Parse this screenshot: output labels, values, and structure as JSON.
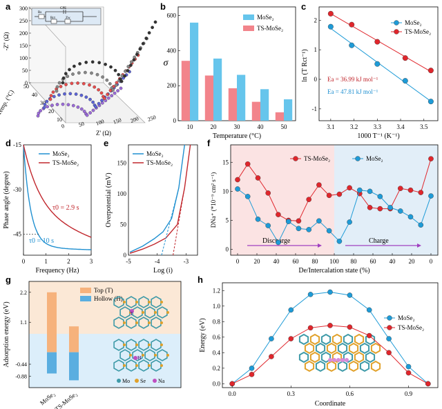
{
  "labels": {
    "a": "a",
    "b": "b",
    "c": "c",
    "d": "d",
    "e": "e",
    "f": "f",
    "g": "g",
    "h": "h"
  },
  "chart_data": [
    {
      "panel": "a",
      "type": "scatter",
      "xlabel": "Z' (Ω)",
      "ylabel": "-Z'' (Ω)",
      "zlabel": "Temp. (°C)",
      "yticks": [
        "0",
        "50",
        "100",
        "150",
        "200",
        "250",
        "300"
      ],
      "xticks": [
        "0",
        "50",
        "100",
        "150",
        "200",
        "250"
      ],
      "zticks": [
        "50",
        "40",
        "30",
        "20",
        "10"
      ],
      "circuit": {
        "rs": "Rs",
        "cpe": "CPE",
        "rct": "Rct",
        "zw": "Zw"
      },
      "series": [
        {
          "temp": "50",
          "color": "#9b6bd9"
        },
        {
          "temp": "40",
          "color": "#5b63d6"
        },
        {
          "temp": "30",
          "color": "#e84d4d"
        },
        {
          "temp": "20",
          "color": "#888888"
        },
        {
          "temp": "10",
          "color": "#333333"
        }
      ]
    },
    {
      "panel": "b",
      "type": "bar",
      "xlabel": "Temperature (°C)",
      "ylabel": "σ",
      "categories": [
        "10",
        "20",
        "30",
        "40",
        "50"
      ],
      "ylim": [
        0,
        650
      ],
      "yticks": [
        0,
        200,
        400,
        600
      ],
      "series": [
        {
          "name": "MoSe₂",
          "values": [
            560,
            355,
            262,
            180,
            122
          ],
          "color": "#66c5ec"
        },
        {
          "name": "TS-MoSe₂",
          "values": [
            342,
            258,
            185,
            108,
            48
          ],
          "color": "#f2848b"
        }
      ]
    },
    {
      "panel": "c",
      "type": "scatter",
      "xlabel": "1000 T⁻¹ (K⁻¹)",
      "ylabel": "ln (T Rct⁻¹)",
      "xlim": [
        3.05,
        3.56
      ],
      "ylim": [
        -1.4,
        2.45
      ],
      "xticks": [
        "3.1",
        "3.2",
        "3.3",
        "3.4",
        "3.5"
      ],
      "yticks": [
        "2",
        "1",
        "0",
        "-1"
      ],
      "series": [
        {
          "name": "MoSe₂",
          "x": [
            3.1,
            3.19,
            3.3,
            3.42,
            3.53
          ],
          "y": [
            1.78,
            1.15,
            0.52,
            -0.05,
            -0.75
          ],
          "color": "#1e9bd7"
        },
        {
          "name": "TS-MoSe₂",
          "x": [
            3.1,
            3.19,
            3.3,
            3.42,
            3.53
          ],
          "y": [
            2.22,
            1.85,
            1.27,
            0.72,
            0.3
          ],
          "color": "#e0262c"
        }
      ],
      "annotations": [
        "Ea = 36.99 kJ mol⁻¹",
        "Ea = 47.81 kJ mol⁻¹"
      ]
    },
    {
      "panel": "d",
      "type": "line",
      "xlabel": "Frequency (Hz)",
      "ylabel": "Phase angle (degree)",
      "xlim": [
        0,
        3
      ],
      "ylim": [
        -52,
        -15
      ],
      "xticks": [
        "0",
        "1",
        "2",
        "3"
      ],
      "yticks": [
        "-45",
        "-30",
        "-15"
      ],
      "series": [
        {
          "name": "MoSe₂",
          "color": "#1e8fd0"
        },
        {
          "name": "TS-MoSe₂",
          "color": "#c0252b"
        }
      ],
      "annotations": [
        "τ0 = 2.9 s",
        "τ0 = 10 s"
      ]
    },
    {
      "panel": "e",
      "type": "line",
      "xlabel": "Log (i)",
      "ylabel": "Overpotential (mV)",
      "xlim": [
        -5,
        -2.6
      ],
      "ylim": [
        0,
        180
      ],
      "xticks": [
        "-5",
        "-4",
        "-3"
      ],
      "yticks": [
        "0",
        "50",
        "100",
        "150"
      ],
      "series": [
        {
          "name": "MoSe₂",
          "color": "#1e8fd0"
        },
        {
          "name": "TS-MoSe₂",
          "color": "#c0252b"
        }
      ]
    },
    {
      "panel": "f",
      "type": "line",
      "xlabel": "De/Intercalation state (%)",
      "ylabel": "DNa⁺ (*10⁻⁹ cm² s⁻¹)",
      "ylim": [
        -1,
        18
      ],
      "xticks": [
        "0",
        "20",
        "40",
        "60",
        "80",
        "100",
        "80",
        "60",
        "40",
        "20",
        "0"
      ],
      "yticks": [
        "0",
        "5",
        "10",
        "15"
      ],
      "regions": [
        "Discharge",
        "Charge"
      ],
      "series": [
        {
          "name": "TS-MoSe₂",
          "values": [
            12,
            14.7,
            12.3,
            9.7,
            6,
            5,
            4.9,
            8.6,
            11.1,
            9.3,
            9.5,
            10.6,
            9.6,
            7.2,
            7,
            7,
            10.5,
            10.2,
            9.8,
            15.6
          ],
          "color": "#e0262c"
        },
        {
          "name": "MoSe₂",
          "values": [
            10.4,
            9.1,
            5.2,
            4.1,
            1.2,
            4.8,
            3.6,
            3.4,
            4.9,
            3.2,
            1.4,
            4.7,
            10.2,
            10,
            9.1,
            7.2,
            6.6,
            5.6,
            4.2,
            9.2
          ],
          "color": "#1e9bd7"
        }
      ]
    },
    {
      "panel": "g",
      "type": "bar",
      "ylabel": "Adsorption energy (eV)",
      "categories": [
        "MoSe₂",
        "TS-MoSe₂"
      ],
      "ylim": [
        -1.3,
        2.6
      ],
      "yticks": [
        "2.2",
        "1.1",
        "-0.44",
        "-0.88"
      ],
      "series": [
        {
          "name": "Top (T)",
          "values": [
            2.2,
            0.95
          ],
          "color": "#f6b27c"
        },
        {
          "name": "Hollow (H)",
          "values": [
            -0.78,
            -1.03
          ],
          "color": "#5aaee0"
        }
      ],
      "structure_legend": [
        "Mo",
        "Se",
        "Na"
      ],
      "site_labels": [
        "T",
        "H"
      ]
    },
    {
      "panel": "h",
      "type": "line",
      "xlabel": "Coordinate",
      "ylabel": "Energy (eV)",
      "xlim": [
        -0.05,
        1.05
      ],
      "ylim": [
        -0.05,
        1.3
      ],
      "xticks": [
        "0.0",
        "0.3",
        "0.6",
        "0.9"
      ],
      "yticks": [
        "0.0",
        "0.2",
        "0.4",
        "0.6",
        "0.8",
        "1.0",
        "1.2"
      ],
      "series": [
        {
          "name": "MoSe₂",
          "x": [
            0,
            0.1,
            0.2,
            0.3,
            0.4,
            0.5,
            0.6,
            0.7,
            0.8,
            0.9,
            1.0
          ],
          "y": [
            0,
            0.2,
            0.58,
            0.95,
            1.15,
            1.18,
            1.14,
            0.95,
            0.58,
            0.22,
            0
          ],
          "color": "#1e9bd7"
        },
        {
          "name": "TS-MoSe₂",
          "x": [
            0,
            0.1,
            0.2,
            0.3,
            0.4,
            0.5,
            0.6,
            0.7,
            0.8,
            0.9,
            1.0
          ],
          "y": [
            0,
            0.12,
            0.35,
            0.58,
            0.72,
            0.75,
            0.73,
            0.62,
            0.4,
            0.14,
            0
          ],
          "color": "#e0262c"
        }
      ]
    }
  ]
}
